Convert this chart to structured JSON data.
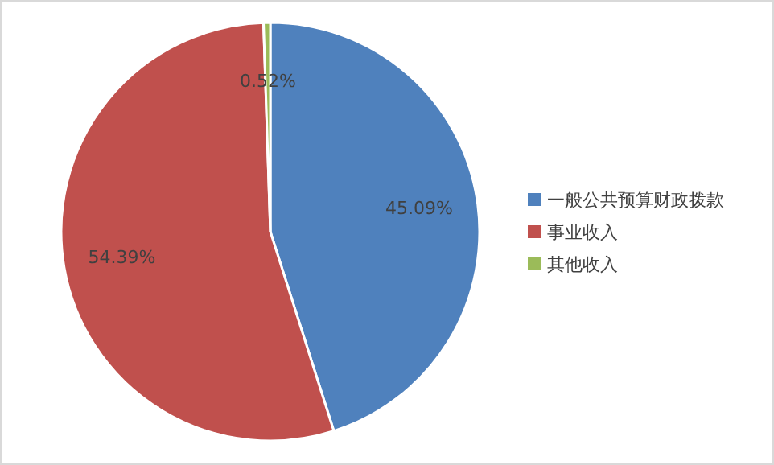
{
  "chart_data": {
    "type": "pie",
    "categories": [
      "一般公共预算财政拨款",
      "事业收入",
      "其他收入"
    ],
    "values": [
      45.09,
      54.39,
      0.52
    ],
    "colors": [
      "#4f81bd",
      "#c0504d",
      "#9bbb59"
    ],
    "value_labels": [
      "45.09%",
      "54.39%",
      "0.52%"
    ],
    "legend": "right"
  }
}
